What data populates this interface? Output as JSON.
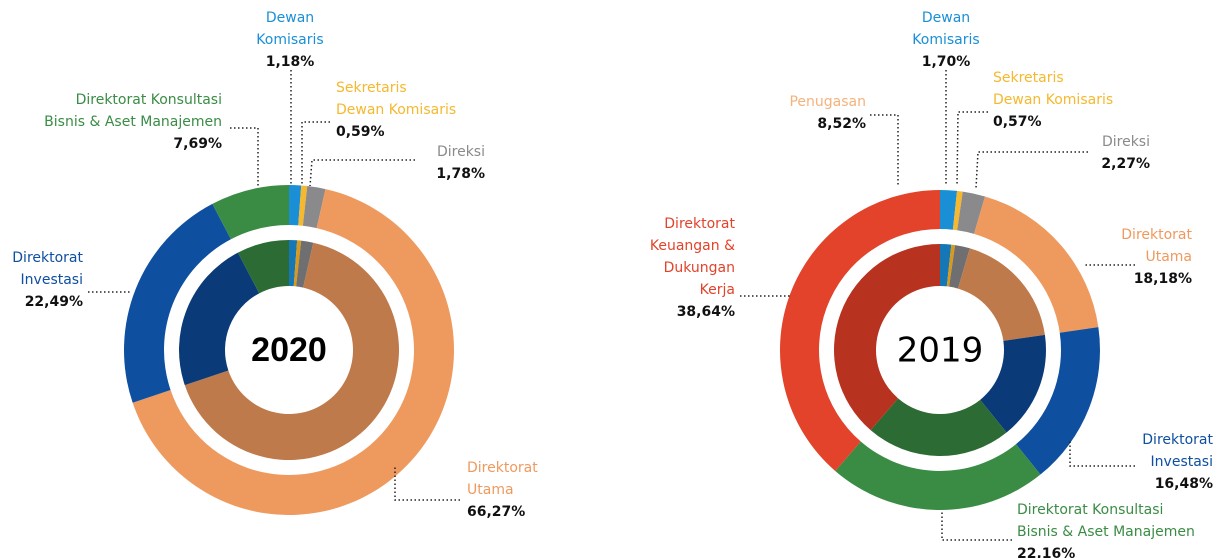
{
  "chart_data": [
    {
      "type": "donut",
      "center_label": "2020",
      "center_bold": true,
      "categories": [
        [
          "Dewan",
          "Komisaris"
        ],
        [
          "Sekretaris",
          "Dewan Komisaris"
        ],
        [
          "Direksi"
        ],
        [
          "Direktorat",
          "Utama"
        ],
        [
          "Direktorat",
          "Investasi"
        ],
        [
          "Direktorat Konsultasi",
          "Bisnis & Aset Manajemen"
        ]
      ],
      "values": [
        1.18,
        0.59,
        1.78,
        66.27,
        22.49,
        7.69
      ],
      "value_labels": [
        "1,18%",
        "0,59%",
        "1,78%",
        "66,27%",
        "22,49%",
        "7,69%"
      ],
      "colors": [
        "#1a8fd6",
        "#f5b82e",
        "#8a8a8c",
        "#ee9a5e",
        "#0e4fa0",
        "#3a8c45"
      ],
      "inner_colors": [
        "#1577b5",
        "#d99a1a",
        "#6f6f71",
        "#bf7a4b",
        "#0b3a78",
        "#2c6b34"
      ]
    },
    {
      "type": "donut",
      "center_label": "2019",
      "center_bold": false,
      "categories": [
        [
          "Dewan",
          "Komisaris"
        ],
        [
          "Sekretaris",
          "Dewan Komisaris"
        ],
        [
          "Direksi"
        ],
        [
          "Direktorat",
          "Utama"
        ],
        [
          "Direktorat",
          "Investasi"
        ],
        [
          "Direktorat Konsultasi",
          "Bisnis & Aset Manajemen"
        ],
        [
          "Direktorat",
          "Keuangan &",
          "Dukungan",
          "Kerja"
        ]
      ],
      "values": [
        1.7,
        0.57,
        2.27,
        18.18,
        16.48,
        22.16,
        38.64
      ],
      "value_labels": [
        "1,70%",
        "0,57%",
        "2,27%",
        "18,18%",
        "16,48%",
        "22,16%",
        "38,64%"
      ],
      "colors": [
        "#1a8fd6",
        "#f5b82e",
        "#8a8a8c",
        "#ee9a5e",
        "#0e4fa0",
        "#3a8c45",
        "#e2432a"
      ],
      "inner_colors": [
        "#1577b5",
        "#d99a1a",
        "#6f6f71",
        "#bf7a4b",
        "#0b3a78",
        "#2c6b34",
        "#b83220"
      ],
      "annotations": [
        {
          "label": "Penugasan",
          "value_label": "8,52%",
          "color": "#f5b27a"
        }
      ]
    }
  ]
}
